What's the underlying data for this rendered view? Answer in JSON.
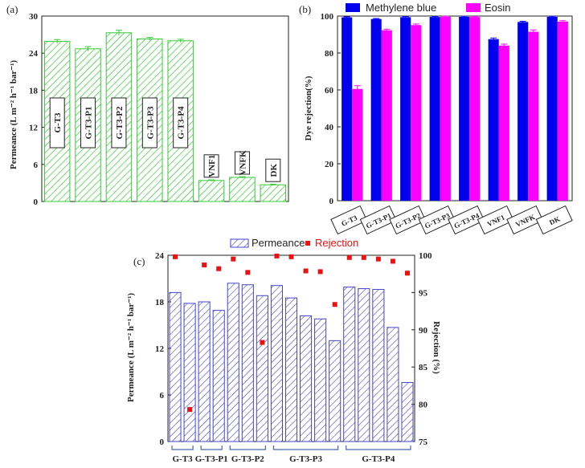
{
  "chart_data": [
    {
      "type": "bar",
      "panel_label": "(a)",
      "categories": [
        "G-T3",
        "G-T3-P1",
        "G-T3-P2",
        "G-T3-P3",
        "G-T3-P4",
        "VNF1",
        "VNFK",
        "DK"
      ],
      "values": [
        25.9,
        24.7,
        27.3,
        26.3,
        26.0,
        3.4,
        3.9,
        2.7
      ],
      "errors": [
        0.3,
        0.35,
        0.4,
        0.25,
        0.25,
        0.1,
        0.1,
        0.1
      ],
      "ylabel": "Permeance (L m⁻² h⁻¹ bar⁻¹)",
      "ylim": [
        0,
        30
      ],
      "yticks": [
        "0",
        "6",
        "12",
        "18",
        "24",
        "30"
      ],
      "colors": {
        "bar": "#33cc33"
      }
    },
    {
      "type": "bar",
      "panel_label": "(b)",
      "categories": [
        "G-T3",
        "G-T3-P1",
        "G-T3-P2",
        "G-T3-P3",
        "G-T3-P4",
        "VNF1",
        "VNFK",
        "DK"
      ],
      "series": [
        {
          "name": "Methylene blue",
          "values": [
            99.3,
            98.4,
            99.4,
            99.5,
            99.6,
            87.5,
            96.8,
            99.6
          ],
          "errors": [
            0.3,
            0.3,
            0.3,
            0.3,
            0.3,
            0.6,
            0.4,
            0.3
          ],
          "color": "#0000ee"
        },
        {
          "name": "Eosin",
          "values": [
            60.5,
            92.3,
            95.1,
            99.6,
            99.5,
            84.0,
            91.5,
            97.0
          ],
          "errors": [
            1.8,
            0.6,
            0.6,
            0.3,
            0.3,
            0.8,
            1.0,
            0.5
          ],
          "color": "#ff00ff"
        }
      ],
      "ylabel": "Dye rejection(%)",
      "ylim": [
        0,
        100
      ],
      "yticks": [
        "0",
        "20",
        "40",
        "60",
        "80",
        "100"
      ]
    },
    {
      "type": "bar",
      "panel_label": "(c)",
      "groups": [
        "G-T3",
        "G-T3-P1",
        "G-T3-P2",
        "G-T3-P3",
        "G-T3-P4"
      ],
      "group_sizes": [
        2,
        2,
        3,
        5,
        5
      ],
      "series": [
        {
          "name": "Permeance",
          "values": [
            19.2,
            17.8,
            18.0,
            16.9,
            20.4,
            20.2,
            18.8,
            20.1,
            18.5,
            16.2,
            15.8,
            13.0,
            19.9,
            19.7,
            19.6,
            14.7,
            7.6
          ],
          "color": "#4444cc"
        },
        {
          "name": "Rejection",
          "values": [
            99.8,
            79.3,
            98.7,
            98.2,
            99.5,
            97.7,
            88.3,
            99.9,
            99.8,
            97.9,
            97.8,
            93.4,
            99.7,
            99.7,
            99.5,
            99.2,
            97.6
          ],
          "color": "#ee1111"
        }
      ],
      "ylabel": "Permeance (L m⁻² h⁻¹ bar⁻¹)",
      "y2label": "Rejection (%)",
      "ylim": [
        0,
        24
      ],
      "y2lim": [
        75,
        100
      ],
      "yticks": [
        "0",
        "6",
        "12",
        "18",
        "24"
      ],
      "y2ticks": [
        "75",
        "80",
        "85",
        "90",
        "95",
        "100"
      ]
    }
  ]
}
